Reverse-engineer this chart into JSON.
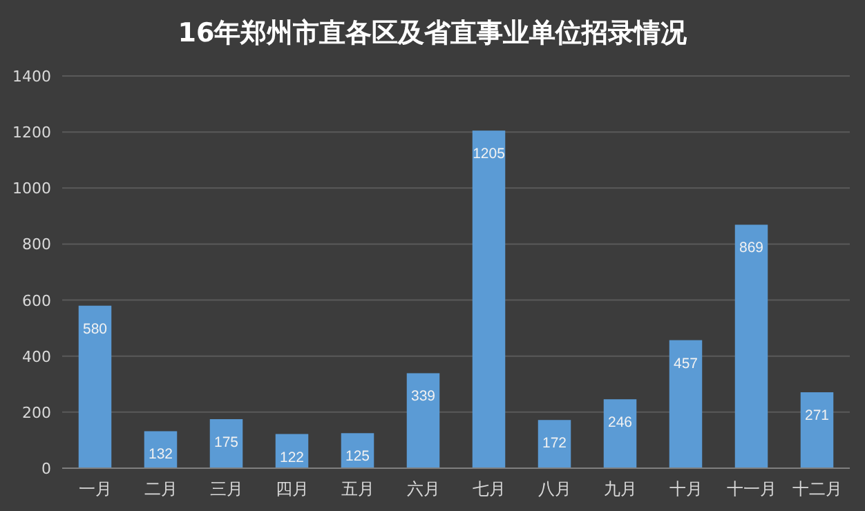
{
  "chart_data": {
    "type": "bar",
    "title": "16年郑州市直各区及省直事业单位招录情况",
    "categories": [
      "一月",
      "二月",
      "三月",
      "四月",
      "五月",
      "六月",
      "七月",
      "八月",
      "九月",
      "十月",
      "十一月",
      "十二月"
    ],
    "values": [
      580,
      132,
      175,
      122,
      125,
      339,
      1205,
      172,
      246,
      457,
      869,
      271
    ],
    "color": "#5b9bd5",
    "ylim": [
      0,
      1400
    ],
    "yticks": [
      0,
      200,
      400,
      600,
      800,
      1000,
      1200,
      1400
    ],
    "grid": "y",
    "data_labels": true
  }
}
